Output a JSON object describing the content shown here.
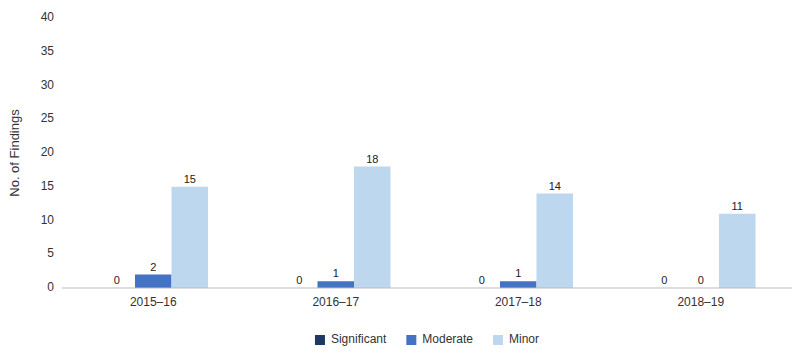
{
  "chart_data": {
    "type": "bar",
    "ylabel": "No. of Findings",
    "categories": [
      "2015–16",
      "2016–17",
      "2017–18",
      "2018–19"
    ],
    "series": [
      {
        "name": "Significant",
        "color": "#1f3864",
        "values": [
          0,
          0,
          0,
          0
        ]
      },
      {
        "name": "Moderate",
        "color": "#4472c4",
        "values": [
          2,
          1,
          1,
          0
        ]
      },
      {
        "name": "Minor",
        "color": "#bdd7ee",
        "values": [
          15,
          18,
          14,
          11
        ]
      }
    ],
    "ylim": [
      0,
      40
    ],
    "yticks": [
      0,
      5,
      10,
      15,
      20,
      25,
      30,
      35,
      40
    ],
    "data_labels": true,
    "grid": false,
    "legend": "bottom"
  }
}
